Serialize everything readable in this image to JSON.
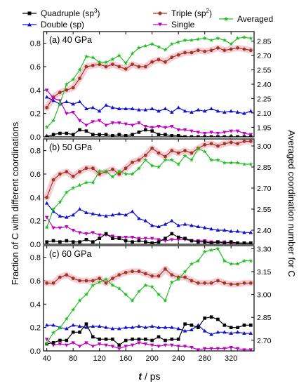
{
  "legend": {
    "quadruple": {
      "label": "Quadruple (sp",
      "sup": "3",
      "close": ")"
    },
    "triple": {
      "label": "Triple (sp",
      "sup": "2",
      "close": ")"
    },
    "double": {
      "label": "Double (sp)",
      "sup": "",
      "close": ""
    },
    "single": {
      "label": "Single",
      "sup": "",
      "close": ""
    },
    "averaged": {
      "label": "Averaged",
      "sup": "",
      "close": ""
    }
  },
  "colors": {
    "quadruple": "#000000",
    "triple": "#a0391b",
    "double": "#1010d0",
    "single": "#c000c0",
    "averaged": "#20c020",
    "band": "#f2bccd"
  },
  "axes": {
    "ylabel_left": "Fraction of C with different coordinations",
    "ylabel_right": "Averaged coordination number for C",
    "xlabel_t": "t",
    "xlabel_unit": " / ps"
  },
  "chart_data": {
    "type": "line",
    "x": [
      40,
      50,
      60,
      70,
      80,
      90,
      100,
      110,
      120,
      130,
      140,
      150,
      160,
      170,
      180,
      190,
      200,
      210,
      220,
      230,
      240,
      250,
      260,
      270,
      280,
      290,
      300,
      310,
      320,
      330,
      340,
      350
    ],
    "xlim": [
      35,
      355
    ],
    "xticks": [
      40,
      80,
      120,
      160,
      200,
      240,
      280,
      320
    ],
    "panels": [
      {
        "label": "(a) 40 GPa",
        "ylim_left": [
          0,
          0.9
        ],
        "yticks_left": [
          "0.0",
          "0.2",
          "0.4",
          "0.6",
          "0.8"
        ],
        "ylim_right": [
          1.85,
          2.95
        ],
        "yticks_right": [
          "1.95",
          "2.10",
          "2.25",
          "2.40",
          "2.55",
          "2.70",
          "2.85"
        ],
        "series": {
          "quadruple": [
            0.0,
            0.02,
            0.03,
            0.03,
            0.02,
            0.06,
            0.05,
            0.02,
            0.02,
            0.02,
            0.01,
            0.02,
            0.01,
            0.02,
            0.04,
            0.06,
            0.05,
            0.02,
            0.02,
            0.01,
            0.01,
            0.0,
            0.0,
            0.0,
            0.0,
            0.0,
            0.0,
            0.0,
            0.0,
            0.0,
            0.0,
            0.0
          ],
          "triple": [
            0.25,
            0.34,
            0.38,
            0.4,
            0.42,
            0.5,
            0.6,
            0.61,
            0.62,
            0.6,
            0.62,
            0.6,
            0.58,
            0.62,
            0.6,
            0.6,
            0.64,
            0.66,
            0.64,
            0.68,
            0.7,
            0.72,
            0.72,
            0.74,
            0.73,
            0.74,
            0.76,
            0.74,
            0.75,
            0.76,
            0.75,
            0.74
          ],
          "double": [
            0.34,
            0.31,
            0.28,
            0.3,
            0.28,
            0.3,
            0.24,
            0.25,
            0.22,
            0.27,
            0.25,
            0.24,
            0.24,
            0.24,
            0.23,
            0.23,
            0.24,
            0.22,
            0.24,
            0.21,
            0.25,
            0.22,
            0.21,
            0.23,
            0.22,
            0.24,
            0.22,
            0.21,
            0.22,
            0.21,
            0.2,
            0.22
          ],
          "single": [
            0.4,
            0.33,
            0.31,
            0.2,
            0.21,
            0.14,
            0.1,
            0.13,
            0.14,
            0.1,
            0.12,
            0.12,
            0.11,
            0.1,
            0.12,
            0.09,
            0.08,
            0.09,
            0.08,
            0.09,
            0.06,
            0.06,
            0.05,
            0.04,
            0.03,
            0.04,
            0.03,
            0.04,
            0.05,
            0.05,
            0.03,
            0.02
          ],
          "averaged": [
            1.95,
            2.02,
            2.2,
            2.4,
            2.45,
            2.55,
            2.69,
            2.68,
            2.63,
            2.63,
            2.66,
            2.7,
            2.62,
            2.72,
            2.78,
            2.8,
            2.82,
            2.79,
            2.76,
            2.82,
            2.84,
            2.86,
            2.86,
            2.87,
            2.88,
            2.86,
            2.88,
            2.86,
            2.82,
            2.88,
            2.89,
            2.88
          ]
        }
      },
      {
        "label": "(b) 50 GPa",
        "ylim_left": [
          0,
          0.9
        ],
        "yticks_left": [
          "0.0",
          "0.2",
          "0.4",
          "0.6",
          "0.8"
        ],
        "ylim_right": [
          2.3,
          3.05
        ],
        "yticks_right": [
          "2.40",
          "2.55",
          "2.70",
          "2.85",
          "3.00"
        ],
        "series": {
          "quadruple": [
            0.02,
            0.03,
            0.02,
            0.03,
            0.02,
            0.02,
            0.04,
            0.02,
            0.05,
            0.09,
            0.05,
            0.05,
            0.03,
            0.02,
            0.03,
            0.02,
            0.01,
            0.02,
            0.05,
            0.09,
            0.06,
            0.05,
            0.03,
            0.02,
            0.02,
            0.01,
            0.02,
            0.01,
            0.02,
            0.01,
            0.01,
            0.01
          ],
          "triple": [
            0.4,
            0.55,
            0.6,
            0.62,
            0.58,
            0.62,
            0.65,
            0.65,
            0.6,
            0.62,
            0.64,
            0.6,
            0.65,
            0.7,
            0.72,
            0.76,
            0.82,
            0.78,
            0.75,
            0.8,
            0.78,
            0.8,
            0.78,
            0.82,
            0.85,
            0.86,
            0.84,
            0.86,
            0.87,
            0.86,
            0.88,
            0.88
          ],
          "double": [
            0.35,
            0.28,
            0.24,
            0.23,
            0.25,
            0.3,
            0.27,
            0.26,
            0.25,
            0.24,
            0.25,
            0.26,
            0.25,
            0.28,
            0.22,
            0.2,
            0.16,
            0.15,
            0.17,
            0.2,
            0.16,
            0.17,
            0.16,
            0.15,
            0.14,
            0.13,
            0.12,
            0.12,
            0.11,
            0.11,
            0.1,
            0.1
          ],
          "single": [
            0.23,
            0.14,
            0.14,
            0.15,
            0.12,
            0.1,
            0.09,
            0.1,
            0.08,
            0.08,
            0.07,
            0.06,
            0.06,
            0.06,
            0.05,
            0.05,
            0.05,
            0.04,
            0.03,
            0.04,
            0.04,
            0.04,
            0.03,
            0.03,
            0.03,
            0.02,
            0.02,
            0.02,
            0.01,
            0.01,
            0.01,
            0.01
          ],
          "averaged": [
            2.42,
            2.55,
            2.6,
            2.67,
            2.7,
            2.72,
            2.74,
            2.74,
            2.82,
            2.82,
            2.78,
            2.82,
            2.8,
            2.8,
            2.84,
            2.9,
            2.86,
            2.85,
            2.9,
            2.9,
            2.87,
            2.93,
            2.9,
            2.98,
            2.96,
            2.9,
            2.9,
            2.88,
            2.88,
            2.88,
            2.87,
            2.87
          ]
        }
      },
      {
        "label": "(c) 60 GPa",
        "ylim_left": [
          0,
          0.9
        ],
        "yticks_left": [
          "0.0",
          "0.2",
          "0.4",
          "0.6",
          "0.8"
        ],
        "ylim_right": [
          2.63,
          3.32
        ],
        "yticks_right": [
          "2.70",
          "2.85",
          "3.00",
          "3.15",
          "3.30"
        ],
        "series": {
          "quadruple": [
            0.06,
            0.07,
            0.09,
            0.09,
            0.16,
            0.16,
            0.23,
            0.12,
            0.1,
            0.1,
            0.1,
            0.05,
            0.09,
            0.1,
            0.1,
            0.1,
            0.09,
            0.12,
            0.09,
            0.1,
            0.1,
            0.23,
            0.22,
            0.2,
            0.28,
            0.29,
            0.27,
            0.22,
            0.2,
            0.2,
            0.22,
            0.22
          ],
          "triple": [
            0.58,
            0.58,
            0.63,
            0.65,
            0.62,
            0.6,
            0.6,
            0.6,
            0.62,
            0.58,
            0.62,
            0.65,
            0.67,
            0.68,
            0.68,
            0.66,
            0.64,
            0.64,
            0.7,
            0.65,
            0.63,
            0.63,
            0.6,
            0.58,
            0.58,
            0.58,
            0.6,
            0.58,
            0.57,
            0.57,
            0.58,
            0.58
          ],
          "double": [
            0.22,
            0.22,
            0.2,
            0.19,
            0.22,
            0.21,
            0.2,
            0.21,
            0.21,
            0.2,
            0.19,
            0.19,
            0.2,
            0.2,
            0.21,
            0.2,
            0.21,
            0.2,
            0.2,
            0.2,
            0.19,
            0.17,
            0.18,
            0.22,
            0.17,
            0.14,
            0.16,
            0.16,
            0.15,
            0.16,
            0.15,
            0.15
          ],
          "single": [
            0.1,
            0.05,
            0.06,
            0.05,
            0.07,
            0.04,
            0.07,
            0.04,
            0.06,
            0.05,
            0.04,
            0.02,
            0.04,
            0.05,
            0.07,
            0.06,
            0.05,
            0.04,
            0.05,
            0.05,
            0.04,
            0.04,
            0.03,
            0.01,
            0.02,
            0.02,
            0.02,
            0.02,
            0.03,
            0.02,
            0.01,
            0.01
          ],
          "averaged": [
            2.68,
            2.75,
            2.78,
            2.84,
            2.9,
            2.96,
            3.0,
            3.06,
            3.08,
            3.1,
            3.06,
            3.04,
            3.0,
            2.96,
            3.02,
            3.06,
            3.05,
            3.0,
            2.96,
            3.08,
            3.1,
            3.15,
            3.2,
            3.22,
            3.28,
            3.29,
            3.3,
            3.22,
            3.2,
            3.2,
            3.22,
            3.22
          ]
        }
      }
    ]
  }
}
